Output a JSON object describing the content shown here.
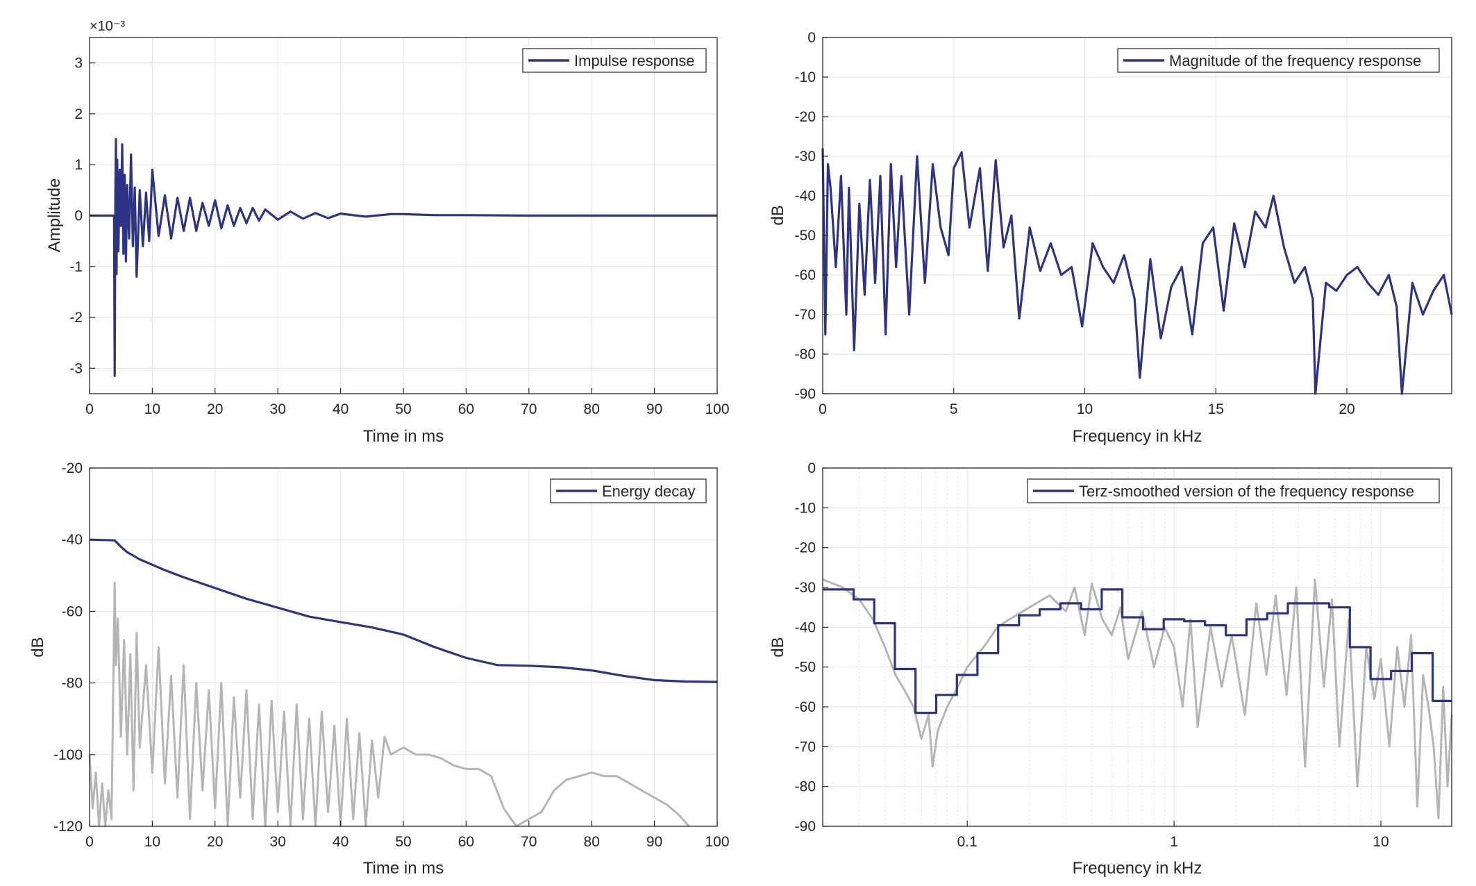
{
  "colors": {
    "series": "#2e3485",
    "reference": "#b5b5b5",
    "grid": "#e3e3e3",
    "axis": "#262626"
  },
  "chart_data": [
    {
      "id": "impulse",
      "type": "line",
      "legend": "Impulse response",
      "legend_location": "top-right",
      "xlabel": "Time in ms",
      "ylabel": "Amplitude",
      "y_exponent_label": "×10⁻³",
      "xlim": [
        0,
        100
      ],
      "ylim": [
        -3.5,
        3.5
      ],
      "xticks": [
        0,
        10,
        20,
        30,
        40,
        50,
        60,
        70,
        80,
        90,
        100
      ],
      "xtick_labels": [
        "0",
        "10",
        "20",
        "30",
        "40",
        "50",
        "60",
        "70",
        "80",
        "90",
        "100"
      ],
      "yticks": [
        -3,
        -2,
        -1,
        0,
        1,
        2,
        3
      ],
      "ytick_labels": [
        "-3",
        "-2",
        "-1",
        "0",
        "1",
        "2",
        "3"
      ],
      "grid": true,
      "series": [
        {
          "style": "series",
          "x": [
            0,
            3.9,
            4.0,
            4.1,
            4.2,
            4.3,
            4.4,
            4.6,
            4.8,
            5.0,
            5.2,
            5.4,
            5.6,
            5.8,
            6.0,
            6.3,
            6.6,
            6.9,
            7.2,
            7.5,
            8.0,
            8.5,
            9.0,
            9.5,
            10.0,
            11,
            12,
            13,
            14,
            15,
            16,
            17,
            18,
            19,
            20,
            21,
            22,
            23,
            24,
            25,
            26,
            27,
            28,
            30,
            32,
            34,
            36,
            38,
            40,
            44,
            48,
            50,
            55,
            60,
            70,
            80,
            90,
            100
          ],
          "y": [
            0,
            0,
            -3.15,
            0.3,
            1.5,
            -1.15,
            1.1,
            -0.7,
            0.9,
            -0.2,
            1.4,
            -0.75,
            0.8,
            -0.9,
            0.6,
            -0.45,
            1.2,
            -0.6,
            0.55,
            -1.2,
            0.5,
            -0.6,
            0.45,
            -0.5,
            0.9,
            -0.4,
            0.4,
            -0.45,
            0.35,
            -0.3,
            0.35,
            -0.3,
            0.25,
            -0.2,
            0.3,
            -0.25,
            0.2,
            -0.2,
            0.15,
            -0.15,
            0.15,
            -0.1,
            0.12,
            -0.08,
            0.08,
            -0.06,
            0.05,
            -0.05,
            0.04,
            -0.02,
            0.03,
            0.03,
            0.01,
            0.01,
            0.0,
            0.0,
            0.0,
            0.0
          ]
        }
      ]
    },
    {
      "id": "magnitude",
      "type": "line",
      "legend": "Magnitude of the frequency response",
      "legend_location": "top-right",
      "xlabel": "Frequency in kHz",
      "ylabel": "dB",
      "xlim": [
        0,
        24
      ],
      "ylim": [
        -90,
        0
      ],
      "xticks": [
        0,
        5,
        10,
        15,
        20
      ],
      "xtick_labels": [
        "0",
        "5",
        "10",
        "15",
        "20"
      ],
      "yticks": [
        0,
        -10,
        -20,
        -30,
        -40,
        -50,
        -60,
        -70,
        -80,
        -90
      ],
      "ytick_labels": [
        "0",
        "-10",
        "-20",
        "-30",
        "-40",
        "-50",
        "-60",
        "-70",
        "-80",
        "-90"
      ],
      "grid": true,
      "series": [
        {
          "style": "series",
          "x": [
            0,
            0.1,
            0.2,
            0.3,
            0.5,
            0.7,
            0.9,
            1.0,
            1.2,
            1.4,
            1.6,
            1.8,
            2.0,
            2.2,
            2.4,
            2.6,
            2.8,
            3.0,
            3.3,
            3.6,
            3.9,
            4.2,
            4.5,
            4.8,
            5.0,
            5.3,
            5.6,
            6.0,
            6.3,
            6.6,
            6.9,
            7.2,
            7.5,
            7.9,
            8.3,
            8.7,
            9.1,
            9.5,
            9.9,
            10.3,
            10.7,
            11.1,
            11.5,
            11.9,
            12.1,
            12.5,
            12.9,
            13.3,
            13.7,
            14.1,
            14.5,
            14.9,
            15.3,
            15.7,
            16.1,
            16.5,
            16.9,
            17.2,
            17.6,
            18.0,
            18.4,
            18.7,
            18.8,
            19.2,
            19.6,
            20.0,
            20.4,
            20.8,
            21.2,
            21.6,
            21.9,
            22.1,
            22.5,
            22.9,
            23.3,
            23.7,
            24.0
          ],
          "y": [
            -28,
            -75,
            -32,
            -38,
            -58,
            -35,
            -70,
            -38,
            -79,
            -42,
            -65,
            -36,
            -62,
            -35,
            -75,
            -32,
            -58,
            -35,
            -70,
            -30,
            -62,
            -32,
            -48,
            -55,
            -33,
            -29,
            -48,
            -33,
            -59,
            -31,
            -53,
            -45,
            -71,
            -48,
            -59,
            -52,
            -60,
            -58,
            -73,
            -52,
            -58,
            -62,
            -55,
            -66,
            -86,
            -56,
            -76,
            -63,
            -58,
            -75,
            -52,
            -48,
            -69,
            -47,
            -58,
            -44,
            -48,
            -40,
            -53,
            -62,
            -58,
            -66,
            -90,
            -62,
            -64,
            -60,
            -58,
            -62,
            -65,
            -60,
            -68,
            -90,
            -62,
            -70,
            -64,
            -60,
            -70
          ]
        }
      ]
    },
    {
      "id": "energy",
      "type": "line",
      "legend": "Energy decay",
      "legend_location": "top-right",
      "xlabel": "Time in ms",
      "ylabel": "dB",
      "xlim": [
        0,
        100
      ],
      "ylim": [
        -120,
        -20
      ],
      "xticks": [
        0,
        10,
        20,
        30,
        40,
        50,
        60,
        70,
        80,
        90,
        100
      ],
      "xtick_labels": [
        "0",
        "10",
        "20",
        "30",
        "40",
        "50",
        "60",
        "70",
        "80",
        "90",
        "100"
      ],
      "yticks": [
        -20,
        -40,
        -60,
        -80,
        -100,
        -120
      ],
      "ytick_labels": [
        "-20",
        "-40",
        "-60",
        "-80",
        "-100",
        "-120"
      ],
      "grid": true,
      "series": [
        {
          "style": "reference",
          "x": [
            0,
            0.5,
            1,
            1.5,
            2,
            2.5,
            3,
            3.5,
            4,
            4.2,
            4.5,
            5,
            5.5,
            6,
            6.5,
            7,
            7.5,
            8,
            9,
            10,
            11,
            12,
            13,
            14,
            15,
            16,
            17,
            18,
            19,
            20,
            21,
            22,
            23,
            24,
            25,
            26,
            27,
            28,
            29,
            30,
            31,
            32,
            33,
            34,
            35,
            36,
            37,
            38,
            39,
            40,
            41,
            42,
            43,
            44,
            45,
            46,
            47,
            48,
            50,
            52,
            54,
            56,
            58,
            60,
            62,
            64,
            66,
            68,
            70,
            72,
            74,
            76,
            78,
            80,
            82,
            84,
            86,
            88,
            90,
            92,
            94,
            95.5
          ],
          "y": [
            -100,
            -115,
            -105,
            -120,
            -108,
            -120,
            -110,
            -118,
            -52,
            -75,
            -62,
            -95,
            -68,
            -100,
            -72,
            -110,
            -66,
            -98,
            -75,
            -105,
            -70,
            -108,
            -78,
            -112,
            -75,
            -118,
            -80,
            -110,
            -82,
            -115,
            -80,
            -120,
            -84,
            -112,
            -82,
            -118,
            -86,
            -120,
            -85,
            -116,
            -88,
            -120,
            -86,
            -118,
            -90,
            -120,
            -88,
            -116,
            -92,
            -120,
            -90,
            -118,
            -94,
            -120,
            -96,
            -112,
            -95,
            -100,
            -98,
            -100,
            -100,
            -101,
            -103,
            -104,
            -104,
            -106,
            -115,
            -120,
            -118,
            -116,
            -110,
            -107,
            -106,
            -105,
            -106,
            -106,
            -108,
            -110,
            -112,
            -114,
            -117,
            -120
          ]
        },
        {
          "style": "series",
          "x": [
            0,
            4,
            5,
            6,
            7,
            8,
            10,
            12,
            15,
            20,
            25,
            30,
            35,
            40,
            45,
            50,
            55,
            60,
            65,
            70,
            75,
            80,
            85,
            90,
            95,
            100
          ],
          "y": [
            -40,
            -40.2,
            -42,
            -43.5,
            -44.5,
            -45.5,
            -47,
            -48.5,
            -50.5,
            -53.5,
            -56.5,
            -59,
            -61.5,
            -63,
            -64.5,
            -66.5,
            -70,
            -73,
            -75,
            -75.2,
            -75.6,
            -76.5,
            -78,
            -79.2,
            -79.6,
            -79.7
          ]
        }
      ]
    },
    {
      "id": "terz",
      "type": "line",
      "xscale": "log",
      "legend": "Terz-smoothed version of the frequency response",
      "legend_location": "top-right",
      "xlabel": "Frequency in kHz",
      "ylabel": "dB",
      "xlim": [
        0.02,
        22
      ],
      "ylim": [
        -90,
        0
      ],
      "xticks": [
        0.1,
        1,
        10
      ],
      "xtick_labels": [
        "0.1",
        "1",
        "10"
      ],
      "yticks": [
        0,
        -10,
        -20,
        -30,
        -40,
        -50,
        -60,
        -70,
        -80,
        -90
      ],
      "ytick_labels": [
        "0",
        "-10",
        "-20",
        "-30",
        "-40",
        "-50",
        "-60",
        "-70",
        "-80",
        "-90"
      ],
      "grid": true,
      "series": [
        {
          "style": "reference",
          "x": [
            0.02,
            0.025,
            0.03,
            0.035,
            0.04,
            0.045,
            0.05,
            0.055,
            0.06,
            0.065,
            0.068,
            0.072,
            0.08,
            0.09,
            0.1,
            0.12,
            0.14,
            0.16,
            0.2,
            0.25,
            0.3,
            0.33,
            0.37,
            0.4,
            0.45,
            0.5,
            0.55,
            0.6,
            0.7,
            0.8,
            0.9,
            1.0,
            1.1,
            1.2,
            1.3,
            1.5,
            1.7,
            1.9,
            2.2,
            2.5,
            2.8,
            3.1,
            3.5,
            3.9,
            4.3,
            4.8,
            5.3,
            5.8,
            6.3,
            7.0,
            7.7,
            8.5,
            9.3,
            10,
            11,
            12,
            13,
            14,
            15,
            16,
            17,
            18,
            19,
            20,
            21,
            22
          ],
          "y": [
            -28,
            -30,
            -33,
            -38,
            -45,
            -52,
            -56,
            -60,
            -68,
            -62,
            -75,
            -66,
            -60,
            -55,
            -50,
            -45,
            -40,
            -38,
            -35,
            -32,
            -36,
            -30,
            -42,
            -29,
            -38,
            -42,
            -35,
            -48,
            -36,
            -50,
            -40,
            -45,
            -60,
            -38,
            -65,
            -40,
            -55,
            -42,
            -62,
            -34,
            -52,
            -32,
            -57,
            -30,
            -75,
            -28,
            -55,
            -33,
            -70,
            -38,
            -80,
            -45,
            -58,
            -48,
            -70,
            -45,
            -60,
            -42,
            -85,
            -52,
            -60,
            -70,
            -88,
            -55,
            -80,
            -62
          ]
        },
        {
          "style": "series",
          "x": [
            0.02,
            0.0282,
            0.0282,
            0.0355,
            0.0355,
            0.0447,
            0.0447,
            0.0562,
            0.0562,
            0.0708,
            0.0708,
            0.0891,
            0.0891,
            0.112,
            0.112,
            0.141,
            0.141,
            0.178,
            0.178,
            0.224,
            0.224,
            0.282,
            0.282,
            0.355,
            0.355,
            0.447,
            0.447,
            0.562,
            0.562,
            0.708,
            0.708,
            0.891,
            0.891,
            1.12,
            1.12,
            1.41,
            1.41,
            1.78,
            1.78,
            2.24,
            2.24,
            2.82,
            2.82,
            3.55,
            3.55,
            4.47,
            4.47,
            5.62,
            5.62,
            7.08,
            7.08,
            8.91,
            8.91,
            11.2,
            11.2,
            14.1,
            14.1,
            17.8,
            17.8,
            22
          ],
          "y": [
            -30.5,
            -30.5,
            -33,
            -33,
            -39,
            -39,
            -50.5,
            -50.5,
            -61.5,
            -61.5,
            -57,
            -57,
            -52,
            -52,
            -46.5,
            -46.5,
            -39.5,
            -39.5,
            -37,
            -37,
            -35.5,
            -35.5,
            -34,
            -34,
            -35.5,
            -35.5,
            -30.5,
            -30.5,
            -37.5,
            -37.5,
            -40.5,
            -40.5,
            -38,
            -38,
            -38.5,
            -38.5,
            -39.5,
            -39.5,
            -42,
            -42,
            -38,
            -38,
            -36.5,
            -36.5,
            -34,
            -34,
            -34,
            -34,
            -35,
            -35,
            -45,
            -45,
            -53,
            -53,
            -51,
            -51,
            -46.5,
            -46.5,
            -58.5,
            -58.5
          ]
        }
      ]
    }
  ]
}
